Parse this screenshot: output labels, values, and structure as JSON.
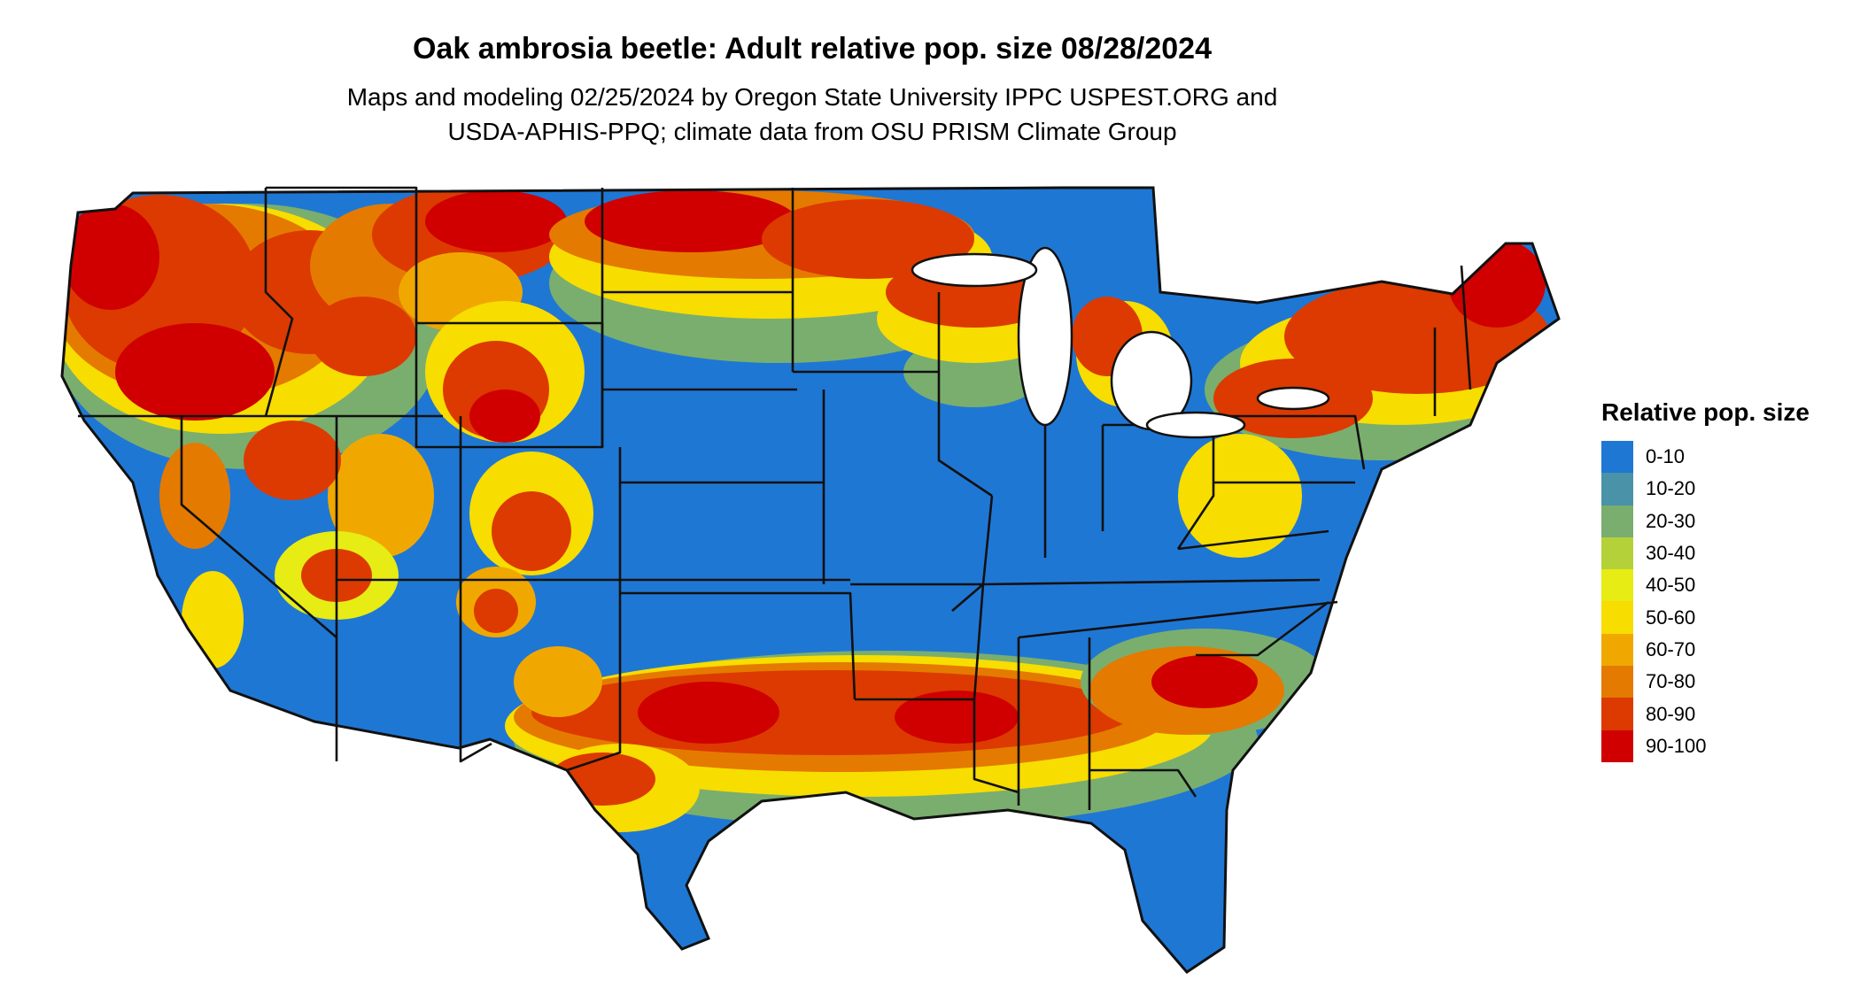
{
  "map": {
    "title": "Oak ambrosia beetle: Adult relative pop. size 08/28/2024",
    "subtitle_line1": "Maps and modeling 02/25/2024 by Oregon State University IPPC USPEST.ORG and",
    "subtitle_line2": "USDA-APHIS-PPQ; climate data from OSU PRISM Climate Group",
    "region": "Contiguous United States",
    "boundaries": "state",
    "base_class": "0-10"
  },
  "legend": {
    "title": "Relative pop. size",
    "placement": "right",
    "items": [
      {
        "label": "0-10",
        "color": "#1f77d4"
      },
      {
        "label": "10-20",
        "color": "#4a92a8"
      },
      {
        "label": "20-30",
        "color": "#7aae6e"
      },
      {
        "label": "30-40",
        "color": "#b5d13a"
      },
      {
        "label": "40-50",
        "color": "#e6ec14"
      },
      {
        "label": "50-60",
        "color": "#f7dd00"
      },
      {
        "label": "60-70",
        "color": "#f0a800"
      },
      {
        "label": "70-80",
        "color": "#e57a00"
      },
      {
        "label": "80-90",
        "color": "#dc3a00"
      },
      {
        "label": "90-100",
        "color": "#d00000"
      }
    ]
  }
}
